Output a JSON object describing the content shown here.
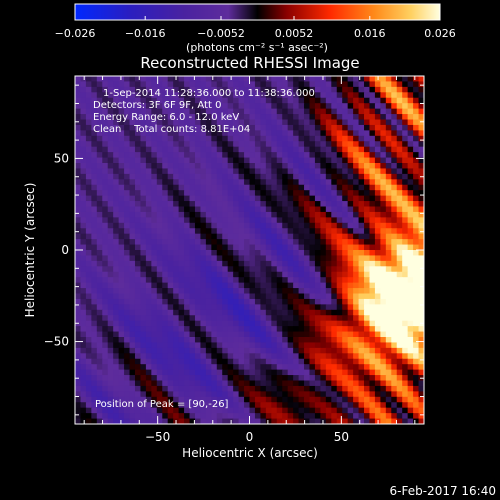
{
  "chart_data": {
    "type": "heatmap",
    "title": "Reconstructed RHESSI Image",
    "xlabel": "Heliocentric X (arcsec)",
    "ylabel": "Heliocentric Y (arcsec)",
    "xlim": [
      -95,
      95
    ],
    "ylim": [
      -95,
      95
    ],
    "x_ticks": [
      -50,
      0,
      50
    ],
    "y_ticks": [
      -50,
      0,
      50
    ],
    "x_tick_labels": [
      "−50",
      "0",
      "50"
    ],
    "y_tick_labels": [
      "−50",
      "0",
      "50"
    ],
    "colorbar": {
      "min": -0.026,
      "max": 0.026,
      "ticks": [
        -0.026,
        -0.016,
        -0.0052,
        0.0052,
        0.016,
        0.026
      ],
      "tick_labels": [
        "−0.026",
        "−0.016",
        "−0.0052",
        "0.0052",
        "0.016",
        "0.026"
      ],
      "unit_label": "(photons cm⁻² s⁻¹ asec⁻²)",
      "colors": [
        "#0028ff",
        "#3c1aa0",
        "#5a2a96",
        "#6a30a8",
        "#000000",
        "#8a0000",
        "#ff2a00",
        "#ff8a1a",
        "#ffd060",
        "#ffffe0"
      ]
    },
    "annotations": [
      "1-Sep-2014 11:28:36.000 to 11:38:36.000",
      "Detectors: 3F 6F 9F, Att 0",
      "Energy Range: 6.0 - 12.0 keV",
      "Clean    Total counts: 8.81E+04",
      "Position of Peak = [90,-26]"
    ],
    "peak_position": [
      90,
      -26
    ],
    "grid": false
  },
  "footer": {
    "timestamp": "6-Feb-2017 16:40"
  }
}
